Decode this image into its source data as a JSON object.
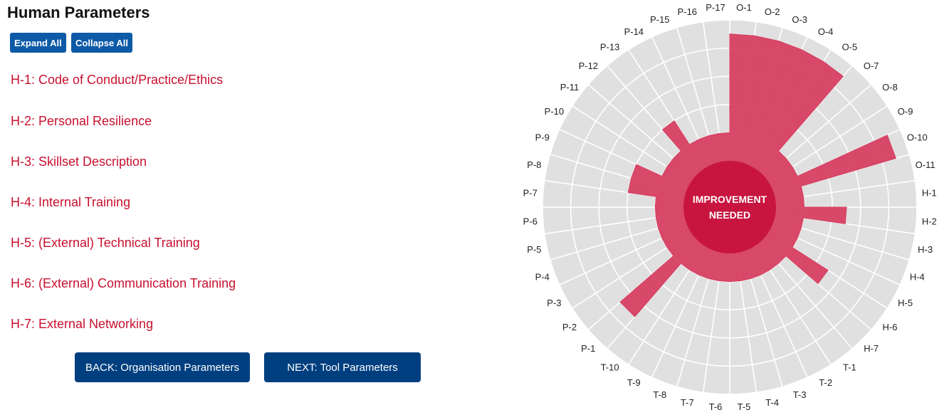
{
  "page": {
    "title": "Human Parameters",
    "expand_all": "Expand All",
    "collapse_all": "Collapse All"
  },
  "parameters": [
    "H-1: Code of Conduct/Practice/Ethics",
    "H-2: Personal Resilience",
    "H-3: Skillset Description",
    "H-4: Internal Training",
    "H-5: (External) Technical Training",
    "H-6: (External) Communication Training",
    "H-7: External Networking"
  ],
  "nav": {
    "back": "BACK: Organisation Parameters",
    "next": "NEXT: Tool Parameters"
  },
  "chart_data": {
    "type": "radar",
    "center_label_line1": "IMPROVEMENT",
    "center_label_line2": "NEEDED",
    "rings": 5,
    "max": 5,
    "categories": [
      "O-1",
      "O-2",
      "O-3",
      "O-4",
      "O-5",
      "O-7",
      "O-8",
      "O-9",
      "O-10",
      "O-11",
      "H-1",
      "H-2",
      "H-3",
      "H-4",
      "H-5",
      "H-6",
      "H-7",
      "T-1",
      "T-2",
      "T-3",
      "T-4",
      "T-5",
      "T-6",
      "T-7",
      "T-8",
      "T-9",
      "T-10",
      "P-1",
      "P-2",
      "P-3",
      "P-4",
      "P-5",
      "P-6",
      "P-7",
      "P-8",
      "P-9",
      "P-10",
      "P-11",
      "P-12",
      "P-13",
      "P-14",
      "P-15",
      "P-16",
      "P-17"
    ],
    "values": [
      4.5,
      4.5,
      4.5,
      4.5,
      4.5,
      1,
      1,
      1,
      4.5,
      1,
      1,
      2.5,
      1,
      1,
      1,
      2.5,
      1,
      1,
      1,
      1,
      1,
      1,
      1,
      1,
      1,
      1,
      1,
      3.5,
      1,
      1,
      1,
      1,
      1,
      1,
      2,
      2,
      1,
      1,
      1,
      2,
      1,
      1,
      1,
      1
    ],
    "colors": {
      "ring_fill": "#e0e0e0",
      "grid_line": "#ffffff",
      "area_fill": "#d63b5e",
      "center_fill": "#c8153f"
    }
  }
}
